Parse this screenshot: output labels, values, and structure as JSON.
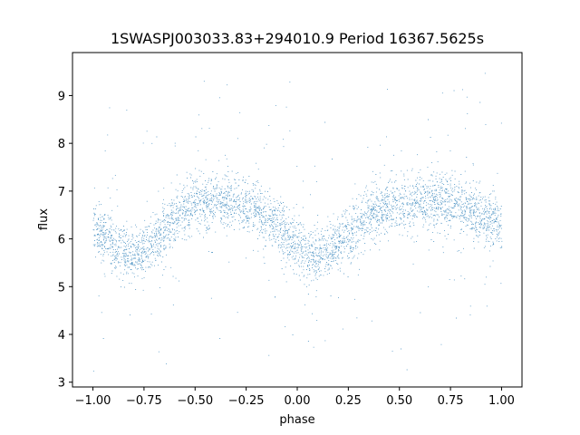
{
  "chart_data": {
    "type": "scatter",
    "title": "1SWASPJ003033.83+294010.9 Period 16367.5625s",
    "xlabel": "phase",
    "ylabel": "flux",
    "xlim": [
      -1.1,
      1.1
    ],
    "ylim": [
      2.9,
      9.9
    ],
    "xticks": [
      -1.0,
      -0.75,
      -0.5,
      -0.25,
      0.0,
      0.25,
      0.5,
      0.75,
      1.0
    ],
    "xtick_labels": [
      "−1.00",
      "−0.75",
      "−0.50",
      "−0.25",
      "0.00",
      "0.25",
      "0.50",
      "0.75",
      "1.00"
    ],
    "yticks": [
      3,
      4,
      5,
      6,
      7,
      8,
      9
    ],
    "ytick_labels": [
      "3",
      "4",
      "5",
      "6",
      "7",
      "8",
      "9"
    ],
    "grid": false,
    "marker_color": "#1f77b4",
    "series": [
      {
        "x": [
          -1.0,
          -0.95,
          -0.9,
          -0.85,
          -0.8,
          -0.75,
          -0.7,
          -0.65,
          -0.6,
          -0.55,
          -0.5,
          -0.45,
          -0.4,
          -0.35,
          -0.3,
          -0.25,
          -0.2,
          -0.15,
          -0.1,
          -0.05,
          0.0,
          0.05,
          0.1,
          0.15,
          0.2,
          0.25,
          0.3,
          0.35,
          0.4,
          0.45,
          0.5,
          0.55,
          0.6,
          0.65,
          0.7,
          0.75,
          0.8,
          0.85,
          0.9,
          0.95,
          1.0
        ],
        "y": [
          6.3,
          6.1,
          5.85,
          5.7,
          5.65,
          5.75,
          5.95,
          6.2,
          6.45,
          6.6,
          6.7,
          6.75,
          6.78,
          6.8,
          6.75,
          6.7,
          6.6,
          6.45,
          6.25,
          6.05,
          5.85,
          5.7,
          5.65,
          5.7,
          5.9,
          6.1,
          6.3,
          6.5,
          6.6,
          6.65,
          6.7,
          6.72,
          6.75,
          6.78,
          6.8,
          6.75,
          6.7,
          6.6,
          6.5,
          6.4,
          6.3
        ]
      }
    ]
  }
}
